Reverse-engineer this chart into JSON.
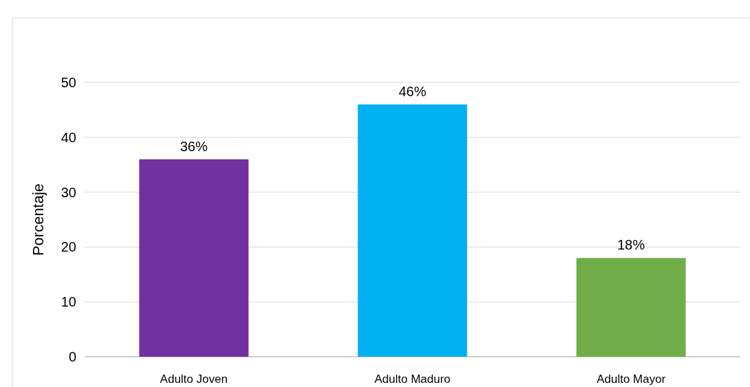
{
  "chart_data": {
    "type": "bar",
    "ylabel": "Porcentaje",
    "categories": [
      "Adulto Joven",
      "Adulto Maduro",
      "Adulto Mayor"
    ],
    "values": [
      36,
      46,
      18
    ],
    "colors": [
      "#7030a0",
      "#00b0f0",
      "#70ad47"
    ],
    "value_labels": [
      "36%",
      "46%",
      "18%"
    ],
    "ylim": [
      0,
      50
    ],
    "yticks": [
      0,
      10,
      20,
      30,
      40,
      50
    ],
    "grid": "y"
  }
}
